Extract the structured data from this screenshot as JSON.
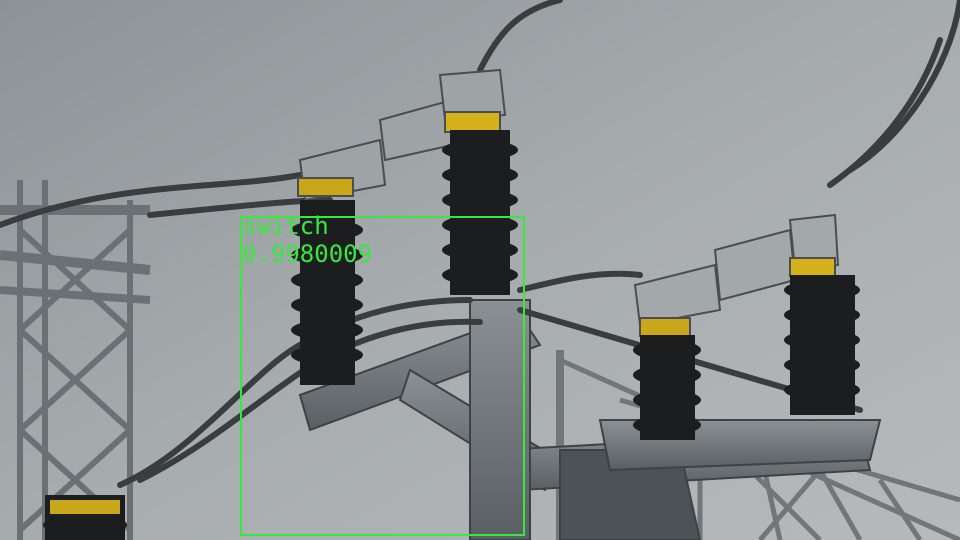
{
  "detection": {
    "label": "switch",
    "score": "0.9980009",
    "box_color": "#39e83c"
  },
  "scene": {
    "subject": "high-voltage disconnect switches on a steel lattice structure against an overcast sky",
    "sky_color": "#9aa0a3",
    "steel_color": "#6e7478",
    "insulator_color": "#1c1d1f"
  }
}
